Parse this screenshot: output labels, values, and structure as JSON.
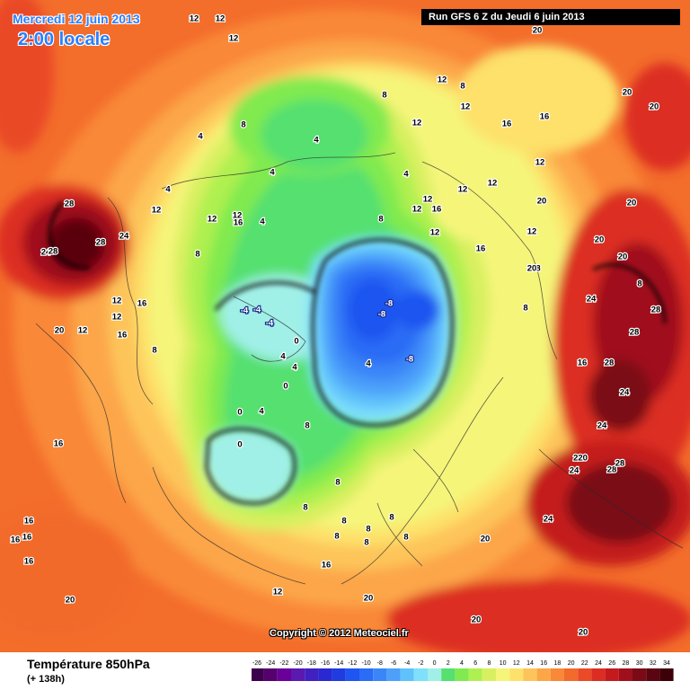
{
  "header": {
    "date": "Mercredi 12 juin 2013",
    "time": "2:00 locale",
    "run": "Run GFS 6 Z du Jeudi 6 juin 2013"
  },
  "footer": {
    "title": "Température 850hPa",
    "horizon": "(+ 138h)",
    "copyright": "Copyright © 2012 Meteociel.fr"
  },
  "legend": {
    "ticks": [
      "-26",
      "-24",
      "-22",
      "-20",
      "-18",
      "-16",
      "-14",
      "-12",
      "-10",
      "-8",
      "-6",
      "-4",
      "-2",
      "0",
      "2",
      "4",
      "6",
      "8",
      "10",
      "12",
      "14",
      "16",
      "18",
      "20",
      "22",
      "24",
      "26",
      "28",
      "30",
      "32",
      "34"
    ],
    "colors": [
      "#3d004d",
      "#55006e",
      "#6a0099",
      "#5a1ab0",
      "#4020c0",
      "#2a28d0",
      "#1e3ce0",
      "#1f55f0",
      "#2a6cf5",
      "#3a86f8",
      "#4da0fa",
      "#60c2fb",
      "#7fe0fb",
      "#a0f0e8",
      "#55e070",
      "#80ea50",
      "#aef050",
      "#d8f060",
      "#f5f57a",
      "#fde16a",
      "#fdc45a",
      "#fca648",
      "#f98838",
      "#f26a2c",
      "#ea4a26",
      "#dc2d22",
      "#c41a1e",
      "#a0101c",
      "#7a0a16",
      "#5a0510",
      "#3e0008"
    ]
  },
  "map_labels": [
    {
      "t": "12"
    },
    {
      "t": "12"
    },
    {
      "t": "12"
    },
    {
      "t": "20"
    },
    {
      "t": "12"
    },
    {
      "t": "8"
    },
    {
      "t": "12"
    },
    {
      "t": "16"
    },
    {
      "t": "16"
    },
    {
      "t": "12"
    },
    {
      "t": "20"
    },
    {
      "t": "20"
    },
    {
      "t": "8"
    },
    {
      "t": "8"
    },
    {
      "t": "4"
    },
    {
      "t": "4"
    },
    {
      "t": "12"
    },
    {
      "t": "12"
    },
    {
      "t": "12"
    },
    {
      "t": "12"
    },
    {
      "t": "16"
    },
    {
      "t": "20"
    },
    {
      "t": "12"
    },
    {
      "t": "20"
    },
    {
      "t": "28"
    },
    {
      "t": "12"
    },
    {
      "t": "4"
    },
    {
      "t": "4"
    },
    {
      "t": "4"
    },
    {
      "t": "4"
    },
    {
      "t": "12"
    },
    {
      "t": "12"
    },
    {
      "t": "8"
    },
    {
      "t": "12"
    },
    {
      "t": "16"
    },
    {
      "t": "12"
    },
    {
      "t": "16"
    },
    {
      "t": "8"
    },
    {
      "t": "8"
    },
    {
      "t": "20"
    },
    {
      "t": "24"
    },
    {
      "t": "28"
    },
    {
      "t": "24"
    },
    {
      "t": "28"
    },
    {
      "t": "8"
    },
    {
      "t": "12"
    },
    {
      "t": "20"
    },
    {
      "t": "20"
    },
    {
      "t": "16"
    },
    {
      "t": "28"
    },
    {
      "t": "12"
    },
    {
      "t": "16"
    },
    {
      "t": "-4"
    },
    {
      "t": "-4"
    },
    {
      "t": "-4"
    },
    {
      "t": "-8"
    },
    {
      "t": "-8"
    },
    {
      "t": "8"
    },
    {
      "t": "24"
    },
    {
      "t": "28"
    },
    {
      "t": "12"
    },
    {
      "t": "20"
    },
    {
      "t": "0"
    },
    {
      "t": "4"
    },
    {
      "t": "4"
    },
    {
      "t": "-8"
    },
    {
      "t": "28"
    },
    {
      "t": "8"
    },
    {
      "t": "0"
    },
    {
      "t": "4"
    },
    {
      "t": "24"
    },
    {
      "t": "16"
    },
    {
      "t": "0"
    },
    {
      "t": "4"
    },
    {
      "t": "8"
    },
    {
      "t": "24"
    },
    {
      "t": "16"
    },
    {
      "t": "0"
    },
    {
      "t": "8"
    },
    {
      "t": "220"
    },
    {
      "t": "28"
    },
    {
      "t": "24"
    },
    {
      "t": "28"
    },
    {
      "t": "8"
    },
    {
      "t": "8"
    },
    {
      "t": "24"
    },
    {
      "t": "16"
    },
    {
      "t": "8"
    },
    {
      "t": "8"
    },
    {
      "t": "8"
    },
    {
      "t": "16"
    },
    {
      "t": "16"
    },
    {
      "t": "8"
    },
    {
      "t": "20"
    },
    {
      "t": "8"
    },
    {
      "t": "16"
    },
    {
      "t": "16"
    },
    {
      "t": "12"
    },
    {
      "t": "20"
    },
    {
      "t": "20"
    },
    {
      "t": "20"
    },
    {
      "t": "20"
    }
  ]
}
